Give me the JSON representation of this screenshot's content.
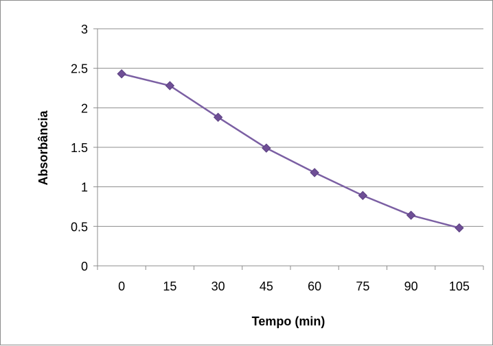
{
  "chart_data": {
    "type": "line",
    "title": "",
    "xlabel": "Tempo (min)",
    "ylabel": "Absorbância",
    "categories": [
      "0",
      "15",
      "30",
      "45",
      "60",
      "75",
      "90",
      "105"
    ],
    "series": [
      {
        "values": [
          2.43,
          2.28,
          1.88,
          1.49,
          1.18,
          0.89,
          0.64,
          0.48
        ],
        "color": "#7b5fa3",
        "marker": "diamond"
      }
    ],
    "ylim": [
      0,
      3
    ],
    "yticks": [
      "0",
      "0.5",
      "1",
      "1.5",
      "2",
      "2.5",
      "3"
    ],
    "grid": "horizontal",
    "legend": "none"
  },
  "colors": {
    "gridline": "#8c8c8c",
    "axis": "#8c8c8c",
    "line": "#7b5fa3",
    "marker": "#6f4f96"
  }
}
